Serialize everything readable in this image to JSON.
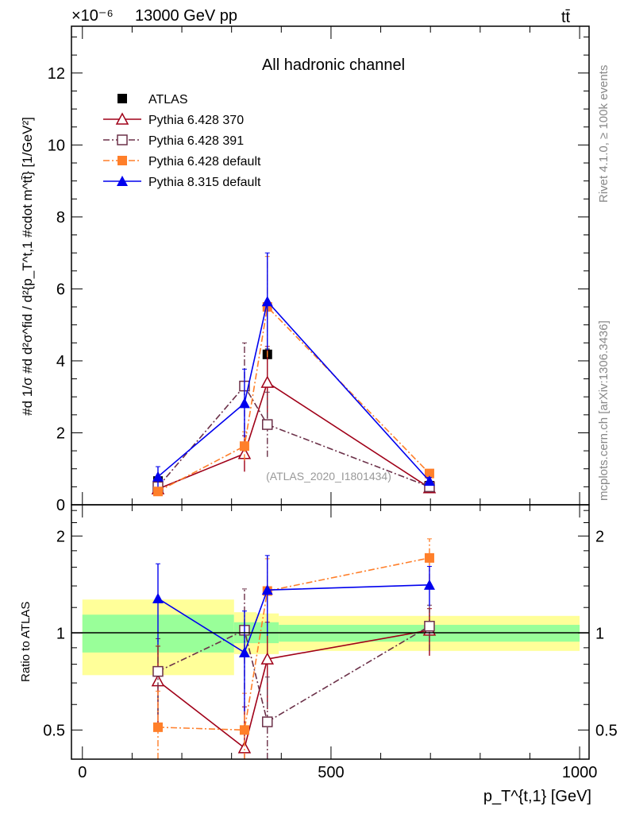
{
  "chart_data": [
    {
      "type": "line",
      "panel": "main",
      "title": "All hadronic channel",
      "top_left_label": "13000 GeV pp",
      "top_right_label": "tt̄",
      "exponent_label": "×10⁻⁶",
      "ylabel": "#d 1/σ #d d²σ^fid / d²{p_T^t,1 #cdot m^tt̄} [1/GeV²]",
      "xlim": [
        -22,
        1019
      ],
      "ylim": [
        0,
        13.3
      ],
      "yticks": [
        0,
        2,
        4,
        6,
        8,
        10,
        12
      ],
      "watermark": "(ATLAS_2020_I1801434)",
      "side_label_1": "Rivet 4.1.0, ≥ 100k events",
      "side_label_2": "mcplots.cern.ch [arXiv:1306.3436]",
      "legend_position": "top-left",
      "x": [
        152,
        326,
        372,
        698
      ],
      "series": [
        {
          "name": "ATLAS",
          "color": "#000000",
          "marker": "filled-square",
          "line": "none",
          "values": [
            0.66,
            3.3,
            4.18,
            0.53
          ],
          "yerr": [
            0.1,
            0.12,
            0.15,
            0.06
          ]
        },
        {
          "name": "Pythia 6.428 370",
          "color": "#a00018",
          "marker": "open-triangle",
          "line": "solid",
          "values": [
            0.44,
            1.42,
            3.4,
            0.47
          ],
          "yerr": [
            0.1,
            0.5,
            1.0,
            0.06
          ]
        },
        {
          "name": "Pythia 6.428 391",
          "color": "#6b3048",
          "marker": "open-square",
          "line": "dashdot",
          "values": [
            0.5,
            3.3,
            2.23,
            0.5
          ],
          "yerr": [
            0.1,
            1.2,
            0.9,
            0.06
          ]
        },
        {
          "name": "Pythia 6.428 default",
          "color": "#ff7f2a",
          "marker": "filled-square",
          "line": "dashdot",
          "values": [
            0.37,
            1.63,
            5.5,
            0.87
          ],
          "yerr": [
            0.08,
            0.4,
            1.4,
            0.1
          ]
        },
        {
          "name": "Pythia 8.315 default",
          "color": "#0000ee",
          "marker": "filled-triangle",
          "line": "solid",
          "values": [
            0.78,
            2.82,
            5.65,
            0.66
          ],
          "yerr": [
            0.28,
            0.95,
            1.35,
            0.1
          ]
        }
      ]
    },
    {
      "type": "line",
      "panel": "ratio",
      "ylabel": "Ratio to ATLAS",
      "xlabel": "p_T^{t,1} [GeV]",
      "xlim": [
        -22,
        1019
      ],
      "xticks": [
        0,
        500,
        1000
      ],
      "yscale": "log",
      "ylim": [
        0.406,
        2.5
      ],
      "yticks": [
        0.5,
        1,
        2
      ],
      "yticklabels": [
        "0.5",
        "1",
        "2"
      ],
      "xticklabels": [
        "0",
        "500",
        "1000"
      ],
      "bands": [
        {
          "x0": 0,
          "x1": 305,
          "yellow": [
            0.74,
            1.27
          ],
          "green": [
            0.87,
            1.14
          ]
        },
        {
          "x0": 305,
          "x1": 350,
          "yellow": [
            0.86,
            1.16
          ],
          "green": [
            0.93,
            1.08
          ]
        },
        {
          "x0": 350,
          "x1": 395,
          "yellow": [
            0.86,
            1.15
          ],
          "green": [
            0.93,
            1.08
          ]
        },
        {
          "x0": 395,
          "x1": 1000,
          "yellow": [
            0.88,
            1.13
          ],
          "green": [
            0.94,
            1.06
          ]
        }
      ],
      "x": [
        152,
        326,
        372,
        698
      ],
      "series": [
        {
          "name": "Pythia 6.428 370",
          "values": [
            0.71,
            0.44,
            0.83,
            1.02
          ],
          "yerr": [
            0.2,
            0.15,
            0.25,
            0.17
          ]
        },
        {
          "name": "Pythia 6.428 391",
          "values": [
            0.76,
            1.02,
            0.53,
            1.05
          ],
          "yerr": [
            0.2,
            0.35,
            0.2,
            0.17
          ]
        },
        {
          "name": "Pythia 6.428 default",
          "values": [
            0.51,
            0.5,
            1.35,
            1.71
          ],
          "yerr": [
            0.15,
            0.15,
            0.35,
            0.25
          ]
        },
        {
          "name": "Pythia 8.315 default",
          "values": [
            1.28,
            0.87,
            1.36,
            1.41
          ],
          "yerr": [
            0.36,
            0.3,
            0.38,
            0.2
          ]
        }
      ]
    }
  ]
}
